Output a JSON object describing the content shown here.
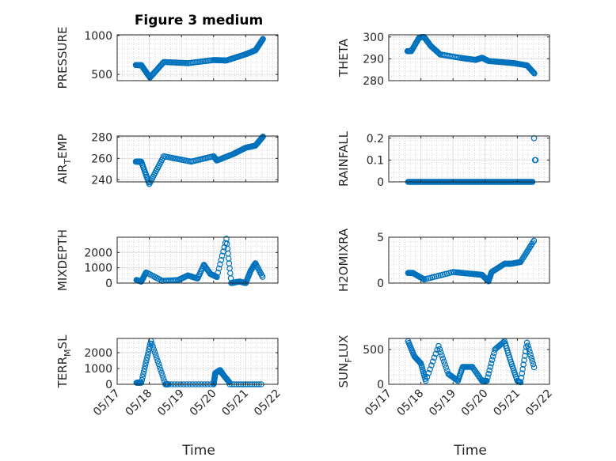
{
  "figure": {
    "title": "Figure 3 medium",
    "xlabel": "Time"
  },
  "colors": {
    "marker": "#0072BD",
    "axis": "#262626",
    "grid": "#DFDFDF",
    "minor_grid": "#BDBDBD",
    "background": "#FFFFFF"
  },
  "chart_data": [
    {
      "type": "scatter",
      "ylabel_parts": [
        "PRESSURE"
      ],
      "xlim": [
        "05/17",
        "05/22"
      ],
      "ylim": [
        420,
        1010
      ],
      "yticks": [
        500,
        1000
      ],
      "xticks": [
        "05/17",
        "05/18",
        "05/19",
        "05/20",
        "05/21",
        "05/22"
      ],
      "show_xticklabels": false,
      "series": [
        {
          "x_segments": [
            [
              0.58,
              0.75
            ],
            [
              0.75,
              1.02
            ],
            [
              1.02,
              1.45
            ],
            [
              1.45,
              2.2
            ],
            [
              2.2,
              3.0
            ],
            [
              3.0,
              3.4
            ],
            [
              3.4,
              4.0
            ],
            [
              4.0,
              4.3
            ],
            [
              4.3,
              4.55
            ]
          ],
          "y_segments": [
            [
              620,
              620
            ],
            [
              620,
              460
            ],
            [
              460,
              660
            ],
            [
              660,
              645
            ],
            [
              645,
              685
            ],
            [
              685,
              680
            ],
            [
              680,
              760
            ],
            [
              760,
              810
            ],
            [
              810,
              965
            ]
          ],
          "n": 150
        }
      ]
    },
    {
      "type": "scatter",
      "ylabel_parts": [
        "THETA"
      ],
      "xlim": [
        "05/17",
        "05/22"
      ],
      "ylim": [
        280,
        301
      ],
      "yticks": [
        280,
        290,
        300
      ],
      "xticks": [
        "05/17",
        "05/18",
        "05/19",
        "05/20",
        "05/21",
        "05/22"
      ],
      "show_xticklabels": false,
      "series": [
        {
          "x_segments": [
            [
              0.58,
              0.7
            ],
            [
              0.7,
              0.95
            ],
            [
              0.95,
              1.1
            ],
            [
              1.1,
              1.3
            ],
            [
              1.3,
              1.6
            ],
            [
              1.6,
              2.2
            ],
            [
              2.2,
              2.7
            ],
            [
              2.7,
              2.9
            ],
            [
              2.9,
              3.1
            ],
            [
              3.1,
              3.5
            ],
            [
              3.5,
              3.9
            ],
            [
              3.9,
              4.3
            ],
            [
              4.3,
              4.55
            ]
          ],
          "y_segments": [
            [
              293.5,
              293.5
            ],
            [
              293.5,
              299.8
            ],
            [
              299.8,
              300
            ],
            [
              300,
              296
            ],
            [
              296,
              292
            ],
            [
              292,
              290.5
            ],
            [
              290.5,
              289.5
            ],
            [
              289.5,
              290.5
            ],
            [
              290.5,
              289
            ],
            [
              289,
              288.5
            ],
            [
              288.5,
              288
            ],
            [
              288,
              287
            ],
            [
              287,
              283
            ]
          ],
          "n": 150
        }
      ]
    },
    {
      "type": "scatter",
      "ylabel_parts": [
        "AIR",
        "T",
        "EMP"
      ],
      "xlim": [
        "05/17",
        "05/22"
      ],
      "ylim": [
        238,
        281
      ],
      "yticks": [
        240,
        260,
        280
      ],
      "xticks": [
        "05/17",
        "05/18",
        "05/19",
        "05/20",
        "05/21",
        "05/22"
      ],
      "show_xticklabels": false,
      "series": [
        {
          "x_segments": [
            [
              0.58,
              0.75
            ],
            [
              0.75,
              1.0
            ],
            [
              1.0,
              1.45
            ],
            [
              1.45,
              2.3
            ],
            [
              2.3,
              3.0
            ],
            [
              3.0,
              3.1
            ],
            [
              3.1,
              3.6
            ],
            [
              3.6,
              4.0
            ],
            [
              4.0,
              4.3
            ],
            [
              4.3,
              4.55
            ]
          ],
          "y_segments": [
            [
              257,
              257
            ],
            [
              257,
              236
            ],
            [
              236,
              262
            ],
            [
              262,
              257
            ],
            [
              257,
              262
            ],
            [
              262,
              258
            ],
            [
              258,
              264
            ],
            [
              264,
              270
            ],
            [
              270,
              272
            ],
            [
              272,
              281
            ]
          ],
          "n": 150
        }
      ]
    },
    {
      "type": "scatter",
      "ylabel_parts": [
        "RAINFALL"
      ],
      "xlim": [
        "05/17",
        "05/22"
      ],
      "ylim": [
        0,
        0.21
      ],
      "yticks": [
        0,
        0.1,
        0.2
      ],
      "xticks": [
        "05/17",
        "05/18",
        "05/19",
        "05/20",
        "05/21",
        "05/22"
      ],
      "show_xticklabels": false,
      "series": [
        {
          "x_segments": [
            [
              0.6,
              4.5
            ]
          ],
          "y_segments": [
            [
              0,
              0
            ]
          ],
          "n": 150,
          "extra_x": [
            4.52,
            4.55,
            4.57
          ],
          "extra_y": [
            0.2,
            0.1,
            0.1
          ]
        }
      ]
    },
    {
      "type": "scatter",
      "ylabel_parts": [
        "MIXDEPTH"
      ],
      "xlim": [
        "05/17",
        "05/22"
      ],
      "ylim": [
        0,
        3000
      ],
      "yticks": [
        0,
        1000,
        2000
      ],
      "xticks": [
        "05/17",
        "05/18",
        "05/19",
        "05/20",
        "05/21",
        "05/22"
      ],
      "show_xticklabels": false,
      "series": [
        {
          "x_segments": [
            [
              0.6,
              0.75
            ],
            [
              0.75,
              0.9
            ],
            [
              0.9,
              1.4
            ],
            [
              1.4,
              1.9
            ],
            [
              1.9,
              2.2
            ],
            [
              2.2,
              2.5
            ],
            [
              2.5,
              2.7
            ],
            [
              2.7,
              2.9
            ],
            [
              2.9,
              3.1
            ],
            [
              3.1,
              3.4
            ],
            [
              3.4,
              3.55
            ],
            [
              3.55,
              3.8
            ],
            [
              3.8,
              4.0
            ],
            [
              4.0,
              4.15
            ],
            [
              4.15,
              4.3
            ],
            [
              4.3,
              4.55
            ]
          ],
          "y_segments": [
            [
              200,
              100
            ],
            [
              100,
              700
            ],
            [
              700,
              150
            ],
            [
              150,
              200
            ],
            [
              200,
              500
            ],
            [
              500,
              300
            ],
            [
              300,
              1200
            ],
            [
              1200,
              600
            ],
            [
              600,
              400
            ],
            [
              400,
              2900
            ],
            [
              2900,
              0
            ],
            [
              0,
              100
            ],
            [
              100,
              0
            ],
            [
              0,
              800
            ],
            [
              800,
              1300
            ],
            [
              1300,
              300
            ]
          ],
          "n": 150
        }
      ]
    },
    {
      "type": "scatter",
      "ylabel_parts": [
        "H2OMIXRA"
      ],
      "xlim": [
        "05/17",
        "05/22"
      ],
      "ylim": [
        0,
        5
      ],
      "yticks": [
        0,
        5
      ],
      "xticks": [
        "05/17",
        "05/18",
        "05/19",
        "05/20",
        "05/21",
        "05/22"
      ],
      "show_xticklabels": false,
      "series": [
        {
          "x_segments": [
            [
              0.6,
              0.75
            ],
            [
              0.75,
              1.1
            ],
            [
              1.1,
              2.0
            ],
            [
              2.0,
              2.6
            ],
            [
              2.6,
              2.9
            ],
            [
              2.9,
              3.1
            ],
            [
              3.1,
              3.2
            ],
            [
              3.2,
              3.6
            ],
            [
              3.6,
              3.8
            ],
            [
              3.8,
              4.1
            ],
            [
              4.1,
              4.55
            ]
          ],
          "y_segments": [
            [
              1.1,
              1.1
            ],
            [
              1.1,
              0.4
            ],
            [
              0.4,
              1.2
            ],
            [
              1.2,
              1.0
            ],
            [
              1.0,
              0.9
            ],
            [
              0.9,
              0.2
            ],
            [
              0.2,
              1.2
            ],
            [
              1.2,
              2.1
            ],
            [
              2.1,
              2.1
            ],
            [
              2.1,
              2.3
            ],
            [
              2.3,
              4.8
            ]
          ],
          "n": 150
        }
      ]
    },
    {
      "type": "scatter",
      "ylabel_parts": [
        "TERR",
        "M",
        "SL"
      ],
      "xlim": [
        "05/17",
        "05/22"
      ],
      "ylim": [
        0,
        2900
      ],
      "yticks": [
        0,
        1000,
        2000
      ],
      "xticks": [
        "05/17",
        "05/18",
        "05/19",
        "05/20",
        "05/21",
        "05/22"
      ],
      "show_xticklabels": true,
      "series": [
        {
          "x_segments": [
            [
              0.6,
              0.75
            ],
            [
              0.75,
              1.05
            ],
            [
              1.05,
              1.5
            ],
            [
              1.5,
              1.6
            ],
            [
              1.6,
              3.0
            ],
            [
              3.0,
              3.05
            ],
            [
              3.05,
              3.2
            ],
            [
              3.2,
              3.3
            ],
            [
              3.3,
              3.5
            ],
            [
              3.5,
              4.55
            ]
          ],
          "y_segments": [
            [
              100,
              100
            ],
            [
              100,
              2750
            ],
            [
              2750,
              0
            ],
            [
              0,
              0
            ],
            [
              0,
              0
            ],
            [
              0,
              700
            ],
            [
              700,
              900
            ],
            [
              900,
              600
            ],
            [
              600,
              100
            ],
            [
              0,
              0
            ]
          ],
          "n": 150
        }
      ]
    },
    {
      "type": "scatter",
      "ylabel_parts": [
        "SUN",
        "F",
        "LUX"
      ],
      "xlim": [
        "05/17",
        "05/22"
      ],
      "ylim": [
        0,
        660
      ],
      "yticks": [
        0,
        500
      ],
      "xticks": [
        "05/17",
        "05/18",
        "05/19",
        "05/20",
        "05/21",
        "05/22"
      ],
      "show_xticklabels": true,
      "series": [
        {
          "x_segments": [
            [
              0.6,
              0.8
            ],
            [
              0.8,
              1.0
            ],
            [
              1.0,
              1.15
            ],
            [
              1.15,
              1.55
            ],
            [
              1.55,
              1.85
            ],
            [
              1.85,
              2.15
            ],
            [
              2.15,
              2.3
            ],
            [
              2.3,
              2.6
            ],
            [
              2.6,
              2.9
            ],
            [
              2.9,
              3.05
            ],
            [
              3.05,
              3.3
            ],
            [
              3.3,
              3.6
            ],
            [
              3.6,
              3.8
            ],
            [
              3.8,
              4.0
            ],
            [
              4.0,
              4.1
            ],
            [
              4.1,
              4.3
            ],
            [
              4.3,
              4.55
            ]
          ],
          "y_segments": [
            [
              620,
              400
            ],
            [
              400,
              300
            ],
            [
              300,
              50
            ],
            [
              50,
              550
            ],
            [
              550,
              150
            ],
            [
              150,
              50
            ],
            [
              50,
              250
            ],
            [
              250,
              250
            ],
            [
              250,
              50
            ],
            [
              50,
              50
            ],
            [
              50,
              500
            ],
            [
              500,
              620
            ],
            [
              620,
              320
            ],
            [
              320,
              50
            ],
            [
              50,
              30
            ],
            [
              30,
              600
            ],
            [
              600,
              200
            ]
          ],
          "n": 150
        }
      ]
    }
  ]
}
